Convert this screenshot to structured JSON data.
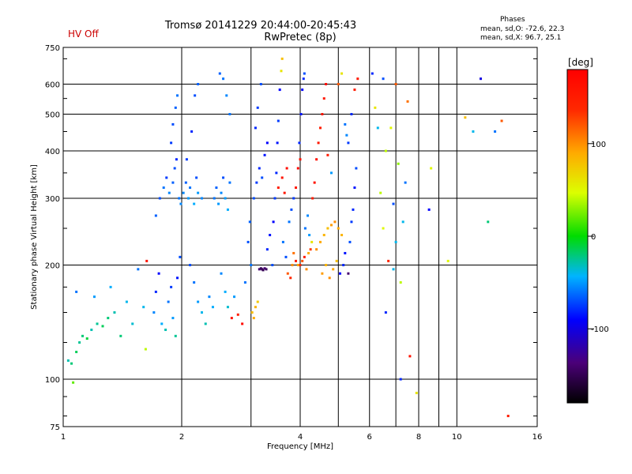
{
  "header": {
    "hv_status": "HV Off",
    "title_line1": "Tromsø 20141229 20:44:00-20:45:43",
    "title_line2": "RwPretec (8p)",
    "stats_title": "Phases",
    "stats_o": "mean, sd,O: -72.6, 22.3",
    "stats_x": "mean, sd,X:  96.7, 25.1"
  },
  "colors": {
    "grid": "#000000",
    "background": "#ffffff",
    "hv_status": "#cc0000"
  },
  "chart_data": {
    "type": "scatter",
    "title": "Tromsø 20141229 20:44:00-20:45:43",
    "subtitle": "RwPretec (8p)",
    "xlabel": "Frequency [MHz]",
    "ylabel": "Stationary phase Virtual Height [km]",
    "x_scale": "log",
    "y_scale": "log",
    "xlim": [
      1,
      16
    ],
    "ylim": [
      75,
      750
    ],
    "x_ticks": [
      1,
      2,
      4,
      6,
      8,
      10,
      16
    ],
    "x_tick_labels": [
      "1",
      "2",
      "4",
      "6",
      "8",
      "10",
      "16"
    ],
    "y_ticks": [
      75,
      100,
      200,
      300,
      400,
      500,
      600,
      750
    ],
    "y_tick_labels": [
      "75",
      "100",
      "200",
      "300",
      "400",
      "500",
      "600",
      "750"
    ],
    "grid": true,
    "colorbar": {
      "label": "[deg]",
      "range": [
        -180,
        180
      ],
      "ticks": [
        100,
        0,
        -100
      ],
      "tick_labels": [
        "100",
        "0",
        "-100"
      ]
    },
    "points": [
      {
        "f": 1.03,
        "h": 112,
        "p": -30
      },
      {
        "f": 1.05,
        "h": 110,
        "p": -20
      },
      {
        "f": 1.08,
        "h": 118,
        "p": -15
      },
      {
        "f": 1.1,
        "h": 125,
        "p": -25
      },
      {
        "f": 1.12,
        "h": 130,
        "p": -20
      },
      {
        "f": 1.15,
        "h": 128,
        "p": -10
      },
      {
        "f": 1.18,
        "h": 135,
        "p": -30
      },
      {
        "f": 1.22,
        "h": 140,
        "p": -25
      },
      {
        "f": 1.26,
        "h": 138,
        "p": -15
      },
      {
        "f": 1.3,
        "h": 145,
        "p": -20
      },
      {
        "f": 1.35,
        "h": 150,
        "p": -30
      },
      {
        "f": 1.06,
        "h": 98,
        "p": 20
      },
      {
        "f": 1.08,
        "h": 170,
        "p": -60
      },
      {
        "f": 1.2,
        "h": 165,
        "p": -50
      },
      {
        "f": 1.32,
        "h": 175,
        "p": -45
      },
      {
        "f": 1.45,
        "h": 160,
        "p": -40
      },
      {
        "f": 1.4,
        "h": 130,
        "p": -20
      },
      {
        "f": 1.5,
        "h": 140,
        "p": -35
      },
      {
        "f": 1.55,
        "h": 195,
        "p": -60
      },
      {
        "f": 1.6,
        "h": 155,
        "p": -40
      },
      {
        "f": 1.62,
        "h": 120,
        "p": 40
      },
      {
        "f": 1.63,
        "h": 205,
        "p": 160
      },
      {
        "f": 1.7,
        "h": 150,
        "p": -55
      },
      {
        "f": 1.72,
        "h": 170,
        "p": -80
      },
      {
        "f": 1.75,
        "h": 190,
        "p": -90
      },
      {
        "f": 1.78,
        "h": 140,
        "p": -45
      },
      {
        "f": 1.82,
        "h": 135,
        "p": -30
      },
      {
        "f": 1.85,
        "h": 160,
        "p": -60
      },
      {
        "f": 1.88,
        "h": 175,
        "p": -75
      },
      {
        "f": 1.9,
        "h": 145,
        "p": -50
      },
      {
        "f": 1.93,
        "h": 130,
        "p": -25
      },
      {
        "f": 1.95,
        "h": 185,
        "p": -85
      },
      {
        "f": 1.98,
        "h": 210,
        "p": -70
      },
      {
        "f": 1.72,
        "h": 270,
        "p": -65
      },
      {
        "f": 1.76,
        "h": 300,
        "p": -70
      },
      {
        "f": 1.8,
        "h": 320,
        "p": -60
      },
      {
        "f": 1.83,
        "h": 340,
        "p": -75
      },
      {
        "f": 1.86,
        "h": 310,
        "p": -55
      },
      {
        "f": 1.9,
        "h": 330,
        "p": -65
      },
      {
        "f": 1.92,
        "h": 360,
        "p": -70
      },
      {
        "f": 1.94,
        "h": 380,
        "p": -80
      },
      {
        "f": 1.97,
        "h": 300,
        "p": -60
      },
      {
        "f": 1.99,
        "h": 290,
        "p": -55
      },
      {
        "f": 1.88,
        "h": 420,
        "p": -75
      },
      {
        "f": 1.9,
        "h": 470,
        "p": -70
      },
      {
        "f": 1.93,
        "h": 520,
        "p": -65
      },
      {
        "f": 1.95,
        "h": 560,
        "p": -60
      },
      {
        "f": 2.02,
        "h": 310,
        "p": -55
      },
      {
        "f": 2.05,
        "h": 330,
        "p": -65
      },
      {
        "f": 2.08,
        "h": 300,
        "p": -50
      },
      {
        "f": 2.1,
        "h": 320,
        "p": -60
      },
      {
        "f": 2.15,
        "h": 290,
        "p": -45
      },
      {
        "f": 2.18,
        "h": 340,
        "p": -70
      },
      {
        "f": 2.2,
        "h": 310,
        "p": -50
      },
      {
        "f": 2.25,
        "h": 300,
        "p": -55
      },
      {
        "f": 2.06,
        "h": 380,
        "p": -75
      },
      {
        "f": 2.12,
        "h": 450,
        "p": -80
      },
      {
        "f": 2.16,
        "h": 560,
        "p": -70
      },
      {
        "f": 2.2,
        "h": 600,
        "p": -65
      },
      {
        "f": 2.1,
        "h": 200,
        "p": -70
      },
      {
        "f": 2.15,
        "h": 180,
        "p": -60
      },
      {
        "f": 2.2,
        "h": 160,
        "p": -50
      },
      {
        "f": 2.25,
        "h": 150,
        "p": -40
      },
      {
        "f": 2.3,
        "h": 140,
        "p": -30
      },
      {
        "f": 2.35,
        "h": 165,
        "p": -55
      },
      {
        "f": 2.4,
        "h": 155,
        "p": -45
      },
      {
        "f": 2.42,
        "h": 300,
        "p": -60
      },
      {
        "f": 2.45,
        "h": 320,
        "p": -65
      },
      {
        "f": 2.48,
        "h": 290,
        "p": -50
      },
      {
        "f": 2.52,
        "h": 310,
        "p": -55
      },
      {
        "f": 2.55,
        "h": 340,
        "p": -70
      },
      {
        "f": 2.58,
        "h": 300,
        "p": -50
      },
      {
        "f": 2.62,
        "h": 280,
        "p": -45
      },
      {
        "f": 2.65,
        "h": 330,
        "p": -60
      },
      {
        "f": 2.5,
        "h": 640,
        "p": -65
      },
      {
        "f": 2.55,
        "h": 620,
        "p": -60
      },
      {
        "f": 2.6,
        "h": 560,
        "p": -55
      },
      {
        "f": 2.65,
        "h": 500,
        "p": -60
      },
      {
        "f": 2.52,
        "h": 190,
        "p": -55
      },
      {
        "f": 2.58,
        "h": 170,
        "p": -45
      },
      {
        "f": 2.62,
        "h": 155,
        "p": -35
      },
      {
        "f": 2.68,
        "h": 145,
        "p": 160
      },
      {
        "f": 2.72,
        "h": 165,
        "p": -50
      },
      {
        "f": 2.78,
        "h": 148,
        "p": 150
      },
      {
        "f": 2.85,
        "h": 140,
        "p": 170
      },
      {
        "f": 2.9,
        "h": 180,
        "p": -60
      },
      {
        "f": 2.95,
        "h": 230,
        "p": -70
      },
      {
        "f": 2.98,
        "h": 260,
        "p": -65
      },
      {
        "f": 3.0,
        "h": 200,
        "p": -60
      },
      {
        "f": 3.02,
        "h": 150,
        "p": 80
      },
      {
        "f": 3.05,
        "h": 145,
        "p": 90
      },
      {
        "f": 3.08,
        "h": 155,
        "p": 85
      },
      {
        "f": 3.12,
        "h": 160,
        "p": 75
      },
      {
        "f": 3.15,
        "h": 195,
        "p": -140
      },
      {
        "f": 3.18,
        "h": 196,
        "p": -150
      },
      {
        "f": 3.2,
        "h": 195,
        "p": -145
      },
      {
        "f": 3.22,
        "h": 194,
        "p": -150
      },
      {
        "f": 3.25,
        "h": 196,
        "p": -140
      },
      {
        "f": 3.28,
        "h": 195,
        "p": -145
      },
      {
        "f": 3.05,
        "h": 300,
        "p": -70
      },
      {
        "f": 3.1,
        "h": 330,
        "p": -75
      },
      {
        "f": 3.15,
        "h": 360,
        "p": -80
      },
      {
        "f": 3.2,
        "h": 340,
        "p": -70
      },
      {
        "f": 3.25,
        "h": 390,
        "p": -85
      },
      {
        "f": 3.3,
        "h": 420,
        "p": -90
      },
      {
        "f": 3.08,
        "h": 460,
        "p": -80
      },
      {
        "f": 3.12,
        "h": 520,
        "p": -75
      },
      {
        "f": 3.18,
        "h": 600,
        "p": -70
      },
      {
        "f": 3.3,
        "h": 220,
        "p": -80
      },
      {
        "f": 3.35,
        "h": 240,
        "p": -85
      },
      {
        "f": 3.4,
        "h": 200,
        "p": -70
      },
      {
        "f": 3.42,
        "h": 260,
        "p": -90
      },
      {
        "f": 3.45,
        "h": 300,
        "p": -75
      },
      {
        "f": 3.48,
        "h": 350,
        "p": -80
      },
      {
        "f": 3.5,
        "h": 420,
        "p": -85
      },
      {
        "f": 3.52,
        "h": 480,
        "p": -75
      },
      {
        "f": 3.55,
        "h": 580,
        "p": -90
      },
      {
        "f": 3.58,
        "h": 650,
        "p": 60
      },
      {
        "f": 3.6,
        "h": 700,
        "p": 80
      },
      {
        "f": 3.52,
        "h": 320,
        "p": 150
      },
      {
        "f": 3.6,
        "h": 340,
        "p": 160
      },
      {
        "f": 3.65,
        "h": 310,
        "p": 155
      },
      {
        "f": 3.7,
        "h": 360,
        "p": 165
      },
      {
        "f": 3.62,
        "h": 230,
        "p": -60
      },
      {
        "f": 3.68,
        "h": 210,
        "p": -70
      },
      {
        "f": 3.72,
        "h": 190,
        "p": 120
      },
      {
        "f": 3.78,
        "h": 185,
        "p": 140
      },
      {
        "f": 3.82,
        "h": 200,
        "p": 100
      },
      {
        "f": 3.85,
        "h": 215,
        "p": 110
      },
      {
        "f": 3.9,
        "h": 205,
        "p": 150
      },
      {
        "f": 3.95,
        "h": 200,
        "p": 90
      },
      {
        "f": 3.75,
        "h": 260,
        "p": -60
      },
      {
        "f": 3.8,
        "h": 280,
        "p": -70
      },
      {
        "f": 3.85,
        "h": 300,
        "p": -75
      },
      {
        "f": 3.9,
        "h": 320,
        "p": 155
      },
      {
        "f": 3.95,
        "h": 360,
        "p": 170
      },
      {
        "f": 4.0,
        "h": 380,
        "p": 160
      },
      {
        "f": 3.98,
        "h": 420,
        "p": -80
      },
      {
        "f": 4.02,
        "h": 500,
        "p": -85
      },
      {
        "f": 4.05,
        "h": 580,
        "p": -90
      },
      {
        "f": 4.08,
        "h": 620,
        "p": -80
      },
      {
        "f": 4.1,
        "h": 640,
        "p": -70
      },
      {
        "f": 4.0,
        "h": 200,
        "p": 140
      },
      {
        "f": 4.05,
        "h": 205,
        "p": 120
      },
      {
        "f": 4.1,
        "h": 210,
        "p": 150
      },
      {
        "f": 4.15,
        "h": 195,
        "p": 100
      },
      {
        "f": 4.2,
        "h": 215,
        "p": 90
      },
      {
        "f": 4.25,
        "h": 220,
        "p": 130
      },
      {
        "f": 4.12,
        "h": 250,
        "p": -60
      },
      {
        "f": 4.18,
        "h": 270,
        "p": -55
      },
      {
        "f": 4.22,
        "h": 240,
        "p": -50
      },
      {
        "f": 4.28,
        "h": 230,
        "p": 60
      },
      {
        "f": 4.3,
        "h": 300,
        "p": 150
      },
      {
        "f": 4.35,
        "h": 330,
        "p": 160
      },
      {
        "f": 4.4,
        "h": 380,
        "p": 165
      },
      {
        "f": 4.45,
        "h": 420,
        "p": 155
      },
      {
        "f": 4.5,
        "h": 460,
        "p": 150
      },
      {
        "f": 4.55,
        "h": 500,
        "p": 160
      },
      {
        "f": 4.6,
        "h": 550,
        "p": 155
      },
      {
        "f": 4.65,
        "h": 600,
        "p": 170
      },
      {
        "f": 4.4,
        "h": 220,
        "p": 100
      },
      {
        "f": 4.5,
        "h": 230,
        "p": 90
      },
      {
        "f": 4.6,
        "h": 240,
        "p": 85
      },
      {
        "f": 4.7,
        "h": 250,
        "p": 80
      },
      {
        "f": 4.8,
        "h": 255,
        "p": 95
      },
      {
        "f": 4.9,
        "h": 260,
        "p": 100
      },
      {
        "f": 5.0,
        "h": 250,
        "p": 90
      },
      {
        "f": 5.1,
        "h": 240,
        "p": 85
      },
      {
        "f": 4.55,
        "h": 190,
        "p": 95
      },
      {
        "f": 4.65,
        "h": 200,
        "p": 85
      },
      {
        "f": 4.75,
        "h": 185,
        "p": 100
      },
      {
        "f": 4.85,
        "h": 195,
        "p": 90
      },
      {
        "f": 4.95,
        "h": 205,
        "p": 80
      },
      {
        "f": 5.05,
        "h": 190,
        "p": -90
      },
      {
        "f": 5.15,
        "h": 200,
        "p": -80
      },
      {
        "f": 5.2,
        "h": 215,
        "p": -85
      },
      {
        "f": 5.3,
        "h": 190,
        "p": -140
      },
      {
        "f": 5.35,
        "h": 230,
        "p": -70
      },
      {
        "f": 5.4,
        "h": 260,
        "p": -75
      },
      {
        "f": 5.45,
        "h": 280,
        "p": -80
      },
      {
        "f": 5.5,
        "h": 320,
        "p": -85
      },
      {
        "f": 5.55,
        "h": 360,
        "p": -70
      },
      {
        "f": 5.3,
        "h": 420,
        "p": -75
      },
      {
        "f": 5.4,
        "h": 500,
        "p": -80
      },
      {
        "f": 5.5,
        "h": 580,
        "p": 150
      },
      {
        "f": 5.6,
        "h": 620,
        "p": 155
      },
      {
        "f": 5.1,
        "h": 640,
        "p": 60
      },
      {
        "f": 5.0,
        "h": 600,
        "p": 120
      },
      {
        "f": 5.2,
        "h": 470,
        "p": -60
      },
      {
        "f": 5.25,
        "h": 440,
        "p": -55
      },
      {
        "f": 4.7,
        "h": 390,
        "p": 150
      },
      {
        "f": 4.8,
        "h": 350,
        "p": -50
      },
      {
        "f": 6.1,
        "h": 640,
        "p": -80
      },
      {
        "f": 6.5,
        "h": 620,
        "p": -70
      },
      {
        "f": 7.0,
        "h": 600,
        "p": 120
      },
      {
        "f": 7.5,
        "h": 540,
        "p": 110
      },
      {
        "f": 6.2,
        "h": 520,
        "p": 60
      },
      {
        "f": 6.3,
        "h": 460,
        "p": -40
      },
      {
        "f": 6.8,
        "h": 460,
        "p": 50
      },
      {
        "f": 6.6,
        "h": 400,
        "p": 40
      },
      {
        "f": 7.1,
        "h": 370,
        "p": 30
      },
      {
        "f": 7.4,
        "h": 330,
        "p": -60
      },
      {
        "f": 6.4,
        "h": 310,
        "p": 40
      },
      {
        "f": 6.9,
        "h": 290,
        "p": -70
      },
      {
        "f": 7.3,
        "h": 260,
        "p": -40
      },
      {
        "f": 6.5,
        "h": 250,
        "p": 50
      },
      {
        "f": 7.0,
        "h": 230,
        "p": -40
      },
      {
        "f": 6.7,
        "h": 205,
        "p": 140
      },
      {
        "f": 6.9,
        "h": 195,
        "p": -40
      },
      {
        "f": 7.2,
        "h": 180,
        "p": 40
      },
      {
        "f": 6.6,
        "h": 150,
        "p": -80
      },
      {
        "f": 7.6,
        "h": 115,
        "p": 160
      },
      {
        "f": 7.2,
        "h": 100,
        "p": -80
      },
      {
        "f": 7.9,
        "h": 92,
        "p": 60
      },
      {
        "f": 8.5,
        "h": 280,
        "p": -90
      },
      {
        "f": 8.6,
        "h": 360,
        "p": 50
      },
      {
        "f": 9.5,
        "h": 205,
        "p": 50
      },
      {
        "f": 10.5,
        "h": 490,
        "p": 80
      },
      {
        "f": 11.5,
        "h": 620,
        "p": -100
      },
      {
        "f": 12.5,
        "h": 450,
        "p": -60
      },
      {
        "f": 13.0,
        "h": 480,
        "p": 120
      },
      {
        "f": 12.0,
        "h": 260,
        "p": -20
      },
      {
        "f": 13.5,
        "h": 80,
        "p": 150
      },
      {
        "f": 11.0,
        "h": 450,
        "p": -40
      }
    ]
  }
}
